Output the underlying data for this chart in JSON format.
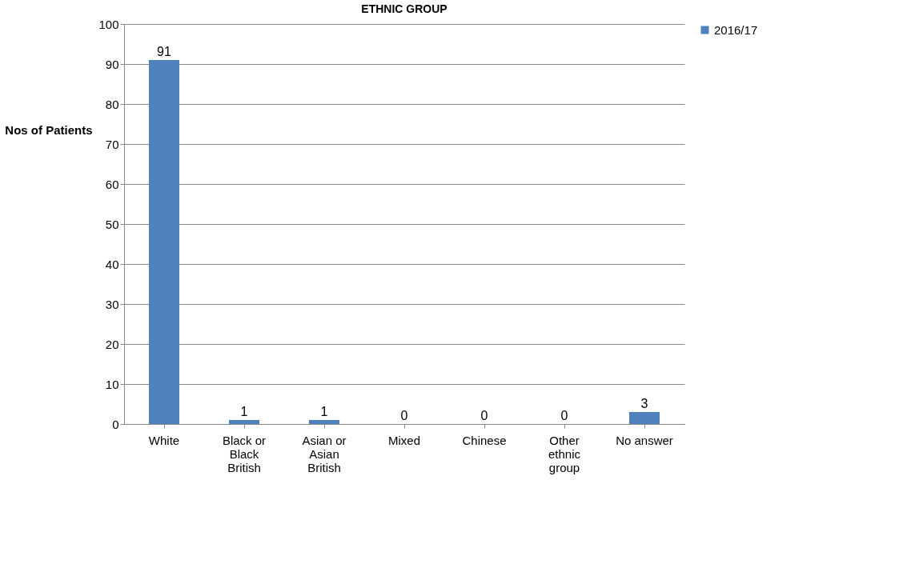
{
  "chart_data": {
    "type": "bar",
    "title": "ETHNIC GROUP",
    "ylabel": "Nos of Patients",
    "categories": [
      "White",
      "Black or Black British",
      "Asian or Asian British",
      "Mixed",
      "Chinese",
      "Other ethnic group",
      "No answer"
    ],
    "series": [
      {
        "name": "2016/17",
        "color": "#4f81bd",
        "values": [
          91,
          1,
          1,
          0,
          0,
          0,
          3
        ]
      }
    ],
    "ylim": [
      0,
      100
    ],
    "yticks": [
      0,
      10,
      20,
      30,
      40,
      50,
      60,
      70,
      80,
      90,
      100
    ],
    "grid": "y",
    "legend": "right",
    "data_labels": true
  }
}
